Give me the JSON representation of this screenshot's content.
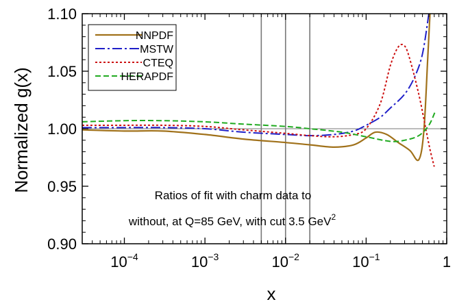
{
  "chart_data": {
    "type": "line",
    "title": "",
    "xlabel": "x",
    "ylabel": "Normalized g(x)",
    "xscale": "log",
    "xlim": [
      3e-05,
      1
    ],
    "ylim": [
      0.9,
      1.1
    ],
    "grid": false,
    "legend_position": "top-left",
    "reference_line_y": 1.0,
    "vertical_lines_x": [
      0.005,
      0.01,
      0.02
    ],
    "y_ticks": [
      {
        "value": 0.9,
        "label": "0.90"
      },
      {
        "value": 0.95,
        "label": "0.95"
      },
      {
        "value": 1.0,
        "label": "1.00"
      },
      {
        "value": 1.05,
        "label": "1.05"
      },
      {
        "value": 1.1,
        "label": "1.10"
      }
    ],
    "x_ticks": [
      {
        "value": 0.0001,
        "base": "10",
        "exp": "−4"
      },
      {
        "value": 0.001,
        "base": "10",
        "exp": "−3"
      },
      {
        "value": 0.01,
        "base": "10",
        "exp": "−2"
      },
      {
        "value": 0.1,
        "base": "10",
        "exp": "−1"
      },
      {
        "value": 1,
        "base": "1",
        "exp": ""
      }
    ],
    "annotation": {
      "line1": "Ratios of fit with charm data to",
      "line2": "without, at Q=85 GeV, with cut 3.5 GeV",
      "line2_sup": "2"
    },
    "series": [
      {
        "name": "NNPDF",
        "color": "#a0711a",
        "dash": "solid",
        "x": [
          3e-05,
          0.0001,
          0.0003,
          0.001,
          0.003,
          0.01,
          0.02,
          0.04,
          0.07,
          0.1,
          0.13,
          0.18,
          0.25,
          0.35,
          0.45,
          0.52,
          0.58,
          0.62
        ],
        "y": [
          0.999,
          0.998,
          0.998,
          0.995,
          0.991,
          0.988,
          0.986,
          0.984,
          0.986,
          0.992,
          0.997,
          0.995,
          0.988,
          0.981,
          0.973,
          0.998,
          1.06,
          1.1
        ]
      },
      {
        "name": "MSTW",
        "color": "#1f1fc8",
        "dash": "dashdot",
        "x": [
          3e-05,
          0.0001,
          0.0003,
          0.001,
          0.003,
          0.01,
          0.02,
          0.04,
          0.07,
          0.1,
          0.15,
          0.2,
          0.3,
          0.4,
          0.5,
          0.6
        ],
        "y": [
          1.001,
          1.001,
          1.001,
          1.0,
          0.997,
          0.995,
          0.994,
          0.995,
          0.998,
          1.003,
          1.01,
          1.018,
          1.03,
          1.045,
          1.065,
          1.1
        ]
      },
      {
        "name": "CTEQ",
        "color": "#cc1010",
        "dash": "dotted",
        "x": [
          3e-05,
          0.0001,
          0.0003,
          0.001,
          0.003,
          0.01,
          0.02,
          0.04,
          0.07,
          0.1,
          0.15,
          0.2,
          0.25,
          0.3,
          0.35,
          0.45,
          0.55,
          0.62,
          0.7
        ],
        "y": [
          1.003,
          1.003,
          1.003,
          1.002,
          0.999,
          0.996,
          0.994,
          0.993,
          0.995,
          1.0,
          1.022,
          1.055,
          1.071,
          1.072,
          1.06,
          1.03,
          1.0,
          0.982,
          0.967
        ]
      },
      {
        "name": "HERAPDF",
        "color": "#1faa1f",
        "dash": "dashed",
        "x": [
          3e-05,
          0.0001,
          0.0003,
          0.001,
          0.003,
          0.01,
          0.02,
          0.05,
          0.1,
          0.2,
          0.3,
          0.45,
          0.6,
          0.72
        ],
        "y": [
          1.006,
          1.007,
          1.007,
          1.006,
          1.004,
          1.002,
          1.0,
          0.997,
          0.993,
          0.989,
          0.99,
          0.994,
          1.003,
          1.015
        ]
      }
    ]
  }
}
